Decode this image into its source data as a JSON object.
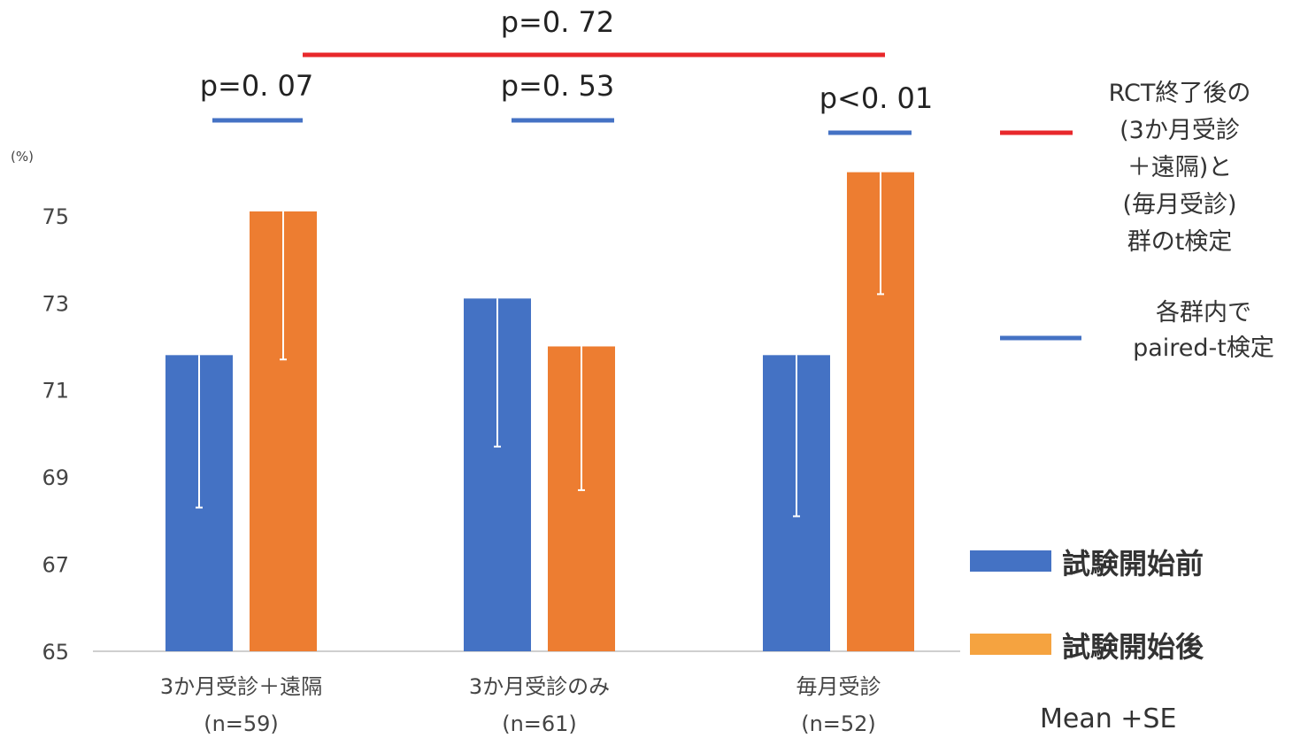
{
  "chart_data": {
    "type": "bar",
    "unit": "(%)",
    "ylim": [
      65,
      76.5
    ],
    "yticks": [
      "65",
      "67",
      "69",
      "71",
      "73",
      "75"
    ],
    "categories": [
      {
        "name": "3か月受診＋遠隔",
        "n": "(n=59)"
      },
      {
        "name": "3か月受診のみ",
        "n": "(n=61)"
      },
      {
        "name": "毎月受診",
        "n": "(n=52)"
      }
    ],
    "series": [
      {
        "name": "試験開始前",
        "color": "#4472c4",
        "values": [
          71.8,
          73.1,
          71.8
        ],
        "errorbar_ends": [
          68.3,
          69.7,
          68.1
        ]
      },
      {
        "name": "試験開始後",
        "color": "#ed7d31",
        "values": [
          75.1,
          72.0,
          76.0
        ],
        "errorbar_ends": [
          71.7,
          68.7,
          73.2
        ]
      }
    ],
    "within_group_tests": [
      "p=0. 07",
      "p=0. 53",
      "p<0. 01"
    ],
    "between_group_test": "p=0. 72",
    "line_notes": [
      {
        "color": "#e8282b",
        "lines": [
          "RCT終了後の",
          "(3か月受診",
          "＋遠隔)と",
          "(毎月受診)",
          "群のt検定"
        ]
      },
      {
        "color": "#4472c4",
        "lines": [
          "各群内で",
          "paired-t検定"
        ]
      }
    ],
    "legend_position": "right",
    "footer": "Mean +SE"
  }
}
